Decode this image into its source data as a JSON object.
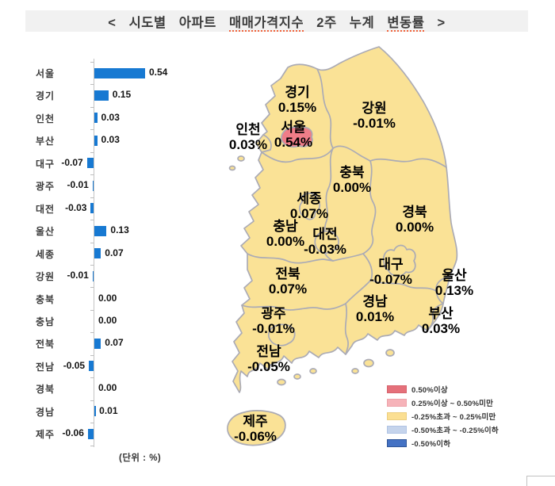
{
  "title": {
    "seg1": "<  시도별  아파트  ",
    "seg2": "매매가격지수",
    "seg3": "  2주  누계  ",
    "seg4": "변동률",
    "seg5": "  >"
  },
  "unit_label": "(단위 : %)",
  "colors": {
    "bar": "#1779d2",
    "map_fill": "#fae296",
    "map_border": "#ababb5",
    "map_highlight": "#ef7d88",
    "title_bg": "#f1f1f1"
  },
  "chart_data": [
    {
      "type": "bar",
      "orientation": "horizontal",
      "title": "시도별 아파트 매매가격지수 2주 누계 변동률",
      "unit": "%",
      "categories": [
        "서울",
        "경기",
        "인천",
        "부산",
        "대구",
        "광주",
        "대전",
        "울산",
        "세종",
        "강원",
        "충북",
        "충남",
        "전북",
        "전남",
        "경북",
        "경남",
        "제주"
      ],
      "values": [
        0.54,
        0.15,
        0.03,
        0.03,
        -0.07,
        -0.01,
        -0.03,
        0.13,
        0.07,
        -0.01,
        0.0,
        0.0,
        0.07,
        -0.05,
        0.0,
        0.01,
        -0.06
      ],
      "value_labels": [
        "0.54",
        "0.15",
        "0.03",
        "0.03",
        "-0.07",
        "-0.01",
        "-0.03",
        "0.13",
        "0.07",
        "-0.01",
        "0.00",
        "0.00",
        "0.07",
        "-0.05",
        "0.00",
        "0.01",
        "-0.06"
      ],
      "xlim": [
        -0.1,
        0.6
      ],
      "grid": false
    },
    {
      "type": "map-choropleth",
      "regions": [
        {
          "name": "경기",
          "value": "0.15%"
        },
        {
          "name": "강원",
          "value": "-0.01%"
        },
        {
          "name": "인천",
          "value": "0.03%"
        },
        {
          "name": "서울",
          "value": "0.54%",
          "band": "0.50%이상"
        },
        {
          "name": "충북",
          "value": "0.00%"
        },
        {
          "name": "세종",
          "value": "0.07%"
        },
        {
          "name": "충남",
          "value": "0.00%"
        },
        {
          "name": "대전",
          "value": "-0.03%"
        },
        {
          "name": "경북",
          "value": "0.00%"
        },
        {
          "name": "전북",
          "value": "0.07%"
        },
        {
          "name": "대구",
          "value": "-0.07%"
        },
        {
          "name": "울산",
          "value": "0.13%"
        },
        {
          "name": "경남",
          "value": "0.01%"
        },
        {
          "name": "부산",
          "value": "0.03%"
        },
        {
          "name": "광주",
          "value": "-0.01%"
        },
        {
          "name": "전남",
          "value": "-0.05%"
        },
        {
          "name": "제주",
          "value": "-0.06%"
        }
      ],
      "legend": [
        {
          "label": "0.50%이상",
          "color": "#e5707a",
          "border": "#d6636d"
        },
        {
          "label": "0.25%이상 ~ 0.50%미만",
          "color": "#f6b3b9",
          "border": "#eda3aa"
        },
        {
          "label": "-0.25%초과 ~ 0.25%미만",
          "color": "#fbdf92",
          "border": "#ecce7f"
        },
        {
          "label": "-0.50%초과 ~ -0.25%이하",
          "color": "#c5d4ec",
          "border": "#b0c4e4"
        },
        {
          "label": "-0.50%이하",
          "color": "#4472c4",
          "border": "#2f5597"
        }
      ]
    }
  ]
}
